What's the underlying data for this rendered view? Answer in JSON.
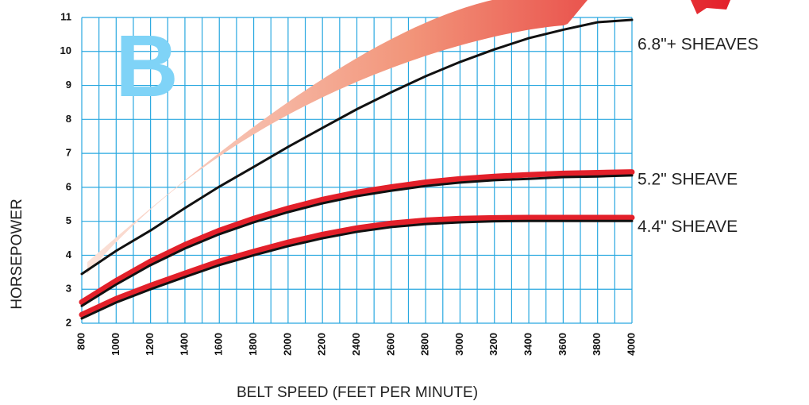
{
  "chart_data": {
    "type": "line",
    "letter": "B",
    "xlabel": "BELT SPEED (FEET PER MINUTE)",
    "ylabel": "HORSEPOWER",
    "x": [
      800,
      1000,
      1200,
      1400,
      1600,
      1800,
      2000,
      2200,
      2400,
      2600,
      2800,
      3000,
      3200,
      3400,
      3600,
      3800,
      4000
    ],
    "xlim": [
      800,
      4000
    ],
    "xticks": [
      800,
      1000,
      1200,
      1400,
      1600,
      1800,
      2000,
      2200,
      2400,
      2600,
      2800,
      3000,
      3200,
      3400,
      3600,
      3800,
      4000
    ],
    "ylim": [
      2,
      11
    ],
    "yticks": [
      2,
      3,
      4,
      5,
      6,
      7,
      8,
      9,
      10,
      11
    ],
    "grid": true,
    "grid_color": "#29a8e0",
    "series": [
      {
        "name": "6.8\"+ SHEAVES",
        "color": "#111111",
        "values": [
          3.45,
          4.13,
          4.73,
          5.39,
          6.02,
          6.6,
          7.19,
          7.75,
          8.3,
          8.8,
          9.27,
          9.69,
          10.06,
          10.39,
          10.64,
          10.86,
          10.93
        ]
      },
      {
        "name": "5.2\" SHEAVE",
        "color": "#111111",
        "highlight_color": "#e3202a",
        "values": [
          2.51,
          3.14,
          3.71,
          4.2,
          4.62,
          4.97,
          5.27,
          5.53,
          5.74,
          5.9,
          6.04,
          6.14,
          6.21,
          6.25,
          6.3,
          6.32,
          6.35
        ],
        "highlight_values": [
          2.62,
          3.25,
          3.82,
          4.31,
          4.73,
          5.08,
          5.38,
          5.64,
          5.85,
          6.01,
          6.15,
          6.25,
          6.32,
          6.37,
          6.41,
          6.43,
          6.45
        ]
      },
      {
        "name": "4.4\" SHEAVE",
        "color": "#111111",
        "highlight_color": "#e3202a",
        "values": [
          2.14,
          2.61,
          3.0,
          3.36,
          3.71,
          4.0,
          4.27,
          4.5,
          4.69,
          4.83,
          4.92,
          4.97,
          5.0,
          5.01,
          5.01,
          5.01,
          5.01
        ],
        "highlight_values": [
          2.25,
          2.72,
          3.11,
          3.47,
          3.82,
          4.11,
          4.38,
          4.61,
          4.8,
          4.94,
          5.03,
          5.08,
          5.1,
          5.11,
          5.11,
          5.11,
          5.11
        ]
      }
    ]
  }
}
